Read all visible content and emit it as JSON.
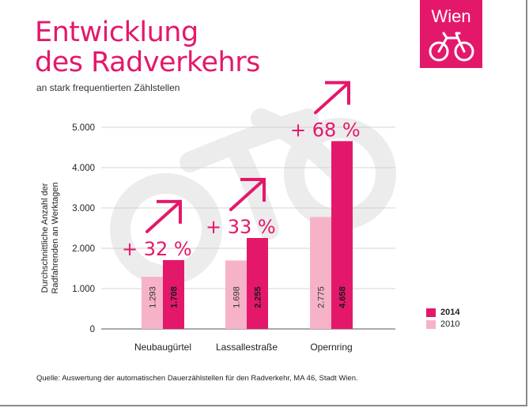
{
  "title_line1": "Entwicklung",
  "title_line2": "des Radverkehrs",
  "subtitle": "an stark frequentierten Zählstellen",
  "logo_text": "Wien",
  "source": "Quelle: Auswertung der automatischen Dauerzählstellen für den Radverkehr, MA 46, Stadt Wien.",
  "colors": {
    "accent": "#e4186b",
    "light": "#f6b3c8",
    "watermark": "#ececec"
  },
  "chart_data": {
    "type": "bar",
    "categories": [
      "Neubaugürtel",
      "Lassallestraße",
      "Opernring"
    ],
    "ylabel_line1": "Durchschnittliche Anzahl der",
    "ylabel_line2": "Radfahrenden an Werktagen",
    "ylim": [
      0,
      5000
    ],
    "yticks": [
      "0",
      "1.000",
      "2.000",
      "3.000",
      "4.000",
      "5.000"
    ],
    "ytick_values": [
      0,
      1000,
      2000,
      3000,
      4000,
      5000
    ],
    "grid": true,
    "legend_position": "right",
    "series": [
      {
        "name": "2010",
        "values": [
          1293,
          1698,
          2775
        ],
        "labels": [
          "1.293",
          "1.698",
          "2.775"
        ]
      },
      {
        "name": "2014",
        "values": [
          1708,
          2255,
          4658
        ],
        "labels": [
          "1.708",
          "2.255",
          "4.658"
        ]
      }
    ],
    "annotations": [
      "+ 32 %",
      "+ 33 %",
      "+ 68 %"
    ]
  }
}
